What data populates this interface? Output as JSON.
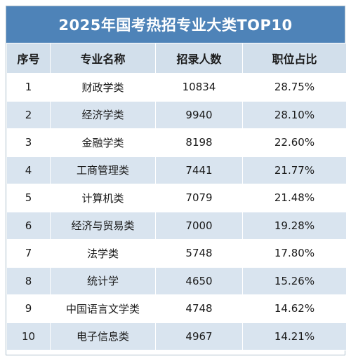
{
  "title": "2025年国考热招专业大类TOP10",
  "headers": [
    "序号",
    "专业名称",
    "招录人数",
    "职位占比"
  ],
  "rows": [
    {
      "rank": "1",
      "major": "财政学类",
      "count": "10834",
      "ratio": "28.75%"
    },
    {
      "rank": "2",
      "major": "经济学类",
      "count": "9940",
      "ratio": "28.10%"
    },
    {
      "rank": "3",
      "major": "金融学类",
      "count": "8198",
      "ratio": "22.60%"
    },
    {
      "rank": "4",
      "major": "工商管理类",
      "count": "7441",
      "ratio": "21.77%"
    },
    {
      "rank": "5",
      "major": "计算机类",
      "count": "7079",
      "ratio": "21.48%"
    },
    {
      "rank": "6",
      "major": "经济与贸易类",
      "count": "7000",
      "ratio": "19.28%"
    },
    {
      "rank": "7",
      "major": "法学类",
      "count": "5748",
      "ratio": "17.80%"
    },
    {
      "rank": "8",
      "major": "统计学",
      "count": "4650",
      "ratio": "15.26%"
    },
    {
      "rank": "9",
      "major": "中国语言文学类",
      "count": "4748",
      "ratio": "14.62%"
    },
    {
      "rank": "10",
      "major": "电子信息类",
      "count": "4967",
      "ratio": "14.21%"
    }
  ],
  "colors": {
    "title_bg": "#4e83b8",
    "header_bg": "#d2dfeb",
    "stripe_bg": "#d9e4ef"
  }
}
